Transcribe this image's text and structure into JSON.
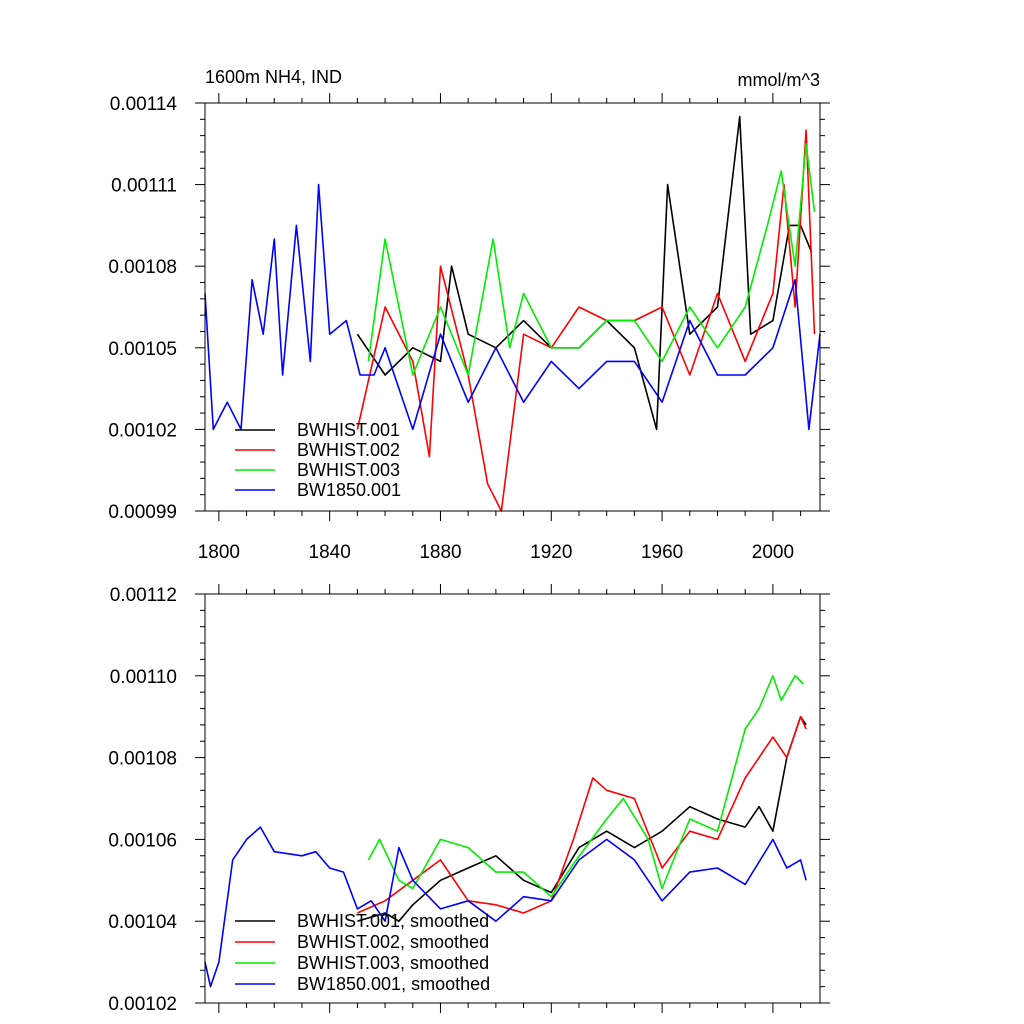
{
  "chart_data": [
    {
      "type": "line",
      "title_left": "1600m NH4, IND",
      "title_right": "mmol/m^3",
      "xlabel": "",
      "ylabel": "",
      "xlim": [
        1795,
        2017
      ],
      "ylim": [
        0.00099,
        0.00114
      ],
      "x_ticks": [
        1800,
        1840,
        1880,
        1920,
        1960,
        2000
      ],
      "x_tick_labels": [
        "1800",
        "1840",
        "1880",
        "1920",
        "1960",
        "2000"
      ],
      "y_ticks": [
        0.00099,
        0.00102,
        0.00105,
        0.00108,
        0.00111,
        0.00114
      ],
      "y_tick_labels": [
        "0.00099",
        "0.00102",
        "0.00105",
        "0.00108",
        "0.00111",
        "0.00114"
      ],
      "series": [
        {
          "name": "BWHIST.001",
          "color": "#000000",
          "x": [
            1850,
            1860,
            1870,
            1880,
            1884,
            1890,
            1900,
            1910,
            1920,
            1930,
            1940,
            1950,
            1958,
            1962,
            1970,
            1980,
            1988,
            1992,
            2000,
            2006,
            2010,
            2014
          ],
          "values": [
            0.001055,
            0.00104,
            0.00105,
            0.001045,
            0.00108,
            0.001055,
            0.00105,
            0.00106,
            0.00105,
            0.00105,
            0.00106,
            0.00105,
            0.00102,
            0.00111,
            0.001055,
            0.001065,
            0.001135,
            0.001055,
            0.00106,
            0.001095,
            0.001095,
            0.001085
          ]
        },
        {
          "name": "BWHIST.002",
          "color": "#ff0000",
          "x": [
            1850,
            1860,
            1870,
            1876,
            1880,
            1890,
            1897,
            1902,
            1910,
            1920,
            1930,
            1940,
            1950,
            1960,
            1970,
            1980,
            1990,
            2000,
            2004,
            2008,
            2012,
            2015
          ],
          "values": [
            0.00102,
            0.001065,
            0.001045,
            0.00101,
            0.00108,
            0.00104,
            0.001,
            0.00099,
            0.001055,
            0.00105,
            0.001065,
            0.00106,
            0.00106,
            0.001065,
            0.00104,
            0.00107,
            0.001045,
            0.00107,
            0.00111,
            0.001065,
            0.00113,
            0.001055
          ]
        },
        {
          "name": "BWHIST.003",
          "color": "#00ee00",
          "x": [
            1854,
            1860,
            1870,
            1880,
            1890,
            1899,
            1905,
            1910,
            1920,
            1930,
            1940,
            1950,
            1960,
            1970,
            1980,
            1990,
            1998,
            2003,
            2008,
            2012,
            2015
          ],
          "values": [
            0.001045,
            0.00109,
            0.00104,
            0.001065,
            0.00104,
            0.00109,
            0.00105,
            0.00107,
            0.00105,
            0.00105,
            0.00106,
            0.00106,
            0.001045,
            0.001065,
            0.00105,
            0.001065,
            0.001095,
            0.001115,
            0.00108,
            0.001125,
            0.0011
          ]
        },
        {
          "name": "BW1850.001",
          "color": "#0000ff",
          "x": [
            1795,
            1798,
            1803,
            1808,
            1812,
            1816,
            1820,
            1823,
            1828,
            1833,
            1836,
            1840,
            1846,
            1851,
            1856,
            1860,
            1870,
            1880,
            1890,
            1900,
            1910,
            1920,
            1930,
            1940,
            1950,
            1960,
            1970,
            1980,
            1990,
            2000,
            2008,
            2013,
            2017
          ],
          "values": [
            0.00107,
            0.00102,
            0.00103,
            0.00102,
            0.001075,
            0.001055,
            0.00109,
            0.00104,
            0.001095,
            0.001045,
            0.00111,
            0.001055,
            0.00106,
            0.00104,
            0.00104,
            0.00105,
            0.00102,
            0.001055,
            0.00103,
            0.00105,
            0.00103,
            0.001045,
            0.001035,
            0.001045,
            0.001045,
            0.00103,
            0.00106,
            0.00104,
            0.00104,
            0.00105,
            0.001075,
            0.00102,
            0.001055
          ]
        }
      ],
      "legend": [
        "BWHIST.001",
        "BWHIST.002",
        "BWHIST.003",
        "BW1850.001"
      ],
      "legend_position": "bottom-left"
    },
    {
      "type": "line",
      "title": "",
      "xlabel": "",
      "ylabel": "",
      "xlim": [
        1795,
        2017
      ],
      "ylim": [
        0.00102,
        0.00112
      ],
      "x_ticks": [
        1800,
        1840,
        1880,
        1920,
        1960,
        2000
      ],
      "y_ticks": [
        0.00102,
        0.00104,
        0.00106,
        0.00108,
        0.0011,
        0.00112
      ],
      "y_tick_labels": [
        "0.00102",
        "0.00104",
        "0.00106",
        "0.00108",
        "0.00110",
        "0.00112"
      ],
      "series": [
        {
          "name": "BWHIST.001, smoothed",
          "color": "#000000",
          "x": [
            1850,
            1860,
            1865,
            1870,
            1880,
            1890,
            1900,
            1910,
            1920,
            1930,
            1940,
            1950,
            1960,
            1970,
            1980,
            1990,
            1995,
            2000,
            2005,
            2010,
            2012
          ],
          "values": [
            0.00104,
            0.001042,
            0.00104,
            0.001044,
            0.00105,
            0.001053,
            0.001056,
            0.00105,
            0.001047,
            0.001058,
            0.001062,
            0.001058,
            0.001062,
            0.001068,
            0.001065,
            0.001063,
            0.001068,
            0.001062,
            0.00108,
            0.00109,
            0.001088
          ]
        },
        {
          "name": "BWHIST.002, smoothed",
          "color": "#ff0000",
          "x": [
            1850,
            1860,
            1870,
            1880,
            1890,
            1900,
            1910,
            1920,
            1928,
            1935,
            1940,
            1950,
            1960,
            1970,
            1980,
            1990,
            2000,
            2005,
            2010,
            2012
          ],
          "values": [
            0.001042,
            0.001045,
            0.00105,
            0.001055,
            0.001045,
            0.001044,
            0.001042,
            0.001045,
            0.00106,
            0.001075,
            0.001072,
            0.00107,
            0.001053,
            0.001062,
            0.00106,
            0.001075,
            0.001085,
            0.00108,
            0.00109,
            0.001087
          ]
        },
        {
          "name": "BWHIST.003, smoothed",
          "color": "#00ee00",
          "x": [
            1854,
            1858,
            1865,
            1870,
            1880,
            1890,
            1900,
            1910,
            1920,
            1928,
            1940,
            1946,
            1955,
            1960,
            1970,
            1980,
            1990,
            1995,
            2000,
            2003,
            2008,
            2011
          ],
          "values": [
            0.001055,
            0.00106,
            0.00105,
            0.001048,
            0.00106,
            0.001058,
            0.001052,
            0.001052,
            0.001046,
            0.001054,
            0.001065,
            0.00107,
            0.00106,
            0.001048,
            0.001065,
            0.001062,
            0.001087,
            0.001092,
            0.0011,
            0.001094,
            0.0011,
            0.001098
          ]
        },
        {
          "name": "BW1850.001, smoothed",
          "color": "#0000ff",
          "x": [
            1795,
            1797,
            1800,
            1805,
            1810,
            1815,
            1820,
            1830,
            1835,
            1840,
            1845,
            1850,
            1855,
            1860,
            1865,
            1870,
            1880,
            1890,
            1900,
            1910,
            1920,
            1930,
            1940,
            1950,
            1960,
            1970,
            1980,
            1990,
            2000,
            2005,
            2010,
            2012
          ],
          "values": [
            0.00103,
            0.001024,
            0.00103,
            0.001055,
            0.00106,
            0.001063,
            0.001057,
            0.001056,
            0.001057,
            0.001053,
            0.001052,
            0.001043,
            0.001045,
            0.00104,
            0.001058,
            0.00105,
            0.001043,
            0.001045,
            0.00104,
            0.001046,
            0.001045,
            0.001055,
            0.00106,
            0.001055,
            0.001045,
            0.001052,
            0.001053,
            0.001049,
            0.00106,
            0.001053,
            0.001055,
            0.00105
          ]
        }
      ],
      "legend": [
        "BWHIST.001, smoothed",
        "BWHIST.002, smoothed",
        "BWHIST.003, smoothed",
        "BW1850.001, smoothed"
      ],
      "legend_position": "bottom-left"
    }
  ]
}
